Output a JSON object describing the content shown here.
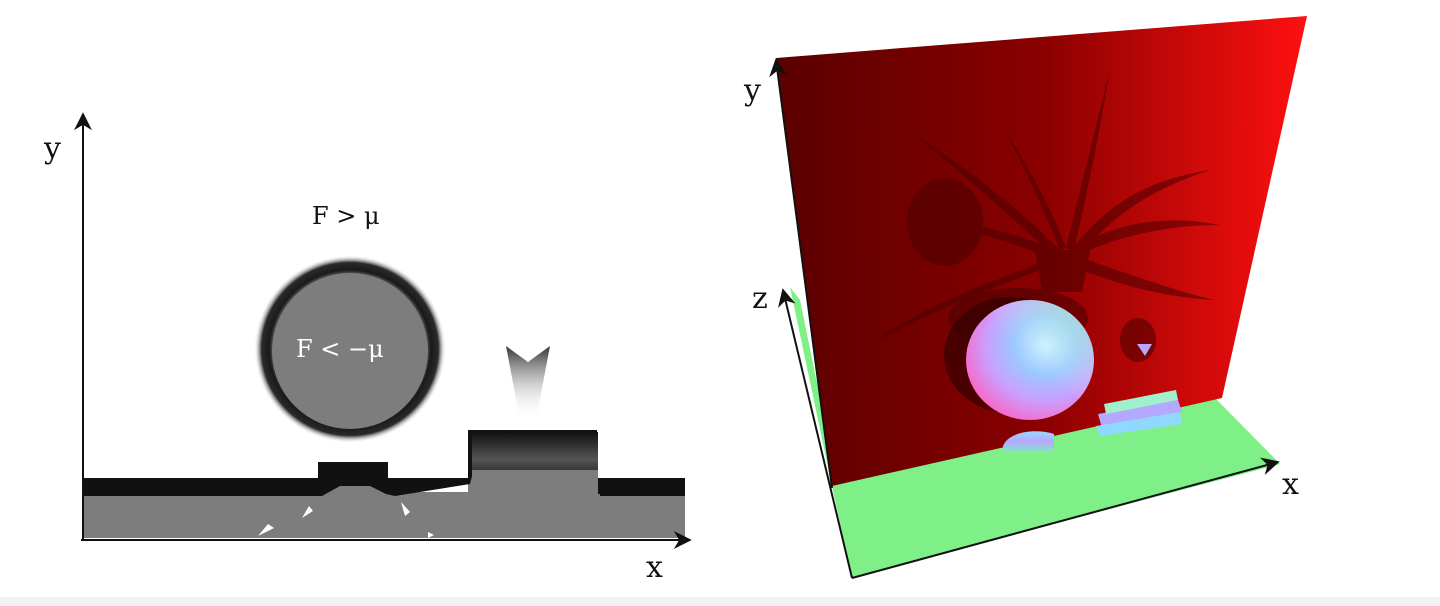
{
  "left_figure": {
    "axis_x_label": "x",
    "axis_y_label": "y",
    "label_outside": "F > μ",
    "label_inside": "F < −μ"
  },
  "right_figure": {
    "axis_x_label": "x",
    "axis_y_label": "y",
    "axis_z_label": "z"
  },
  "colors": {
    "background": "#ffffff",
    "field_gray": "#7d7d7d",
    "boundary_dark": "#111111",
    "back_wall_red": "#b20000",
    "floor_green": "#7ff088"
  }
}
